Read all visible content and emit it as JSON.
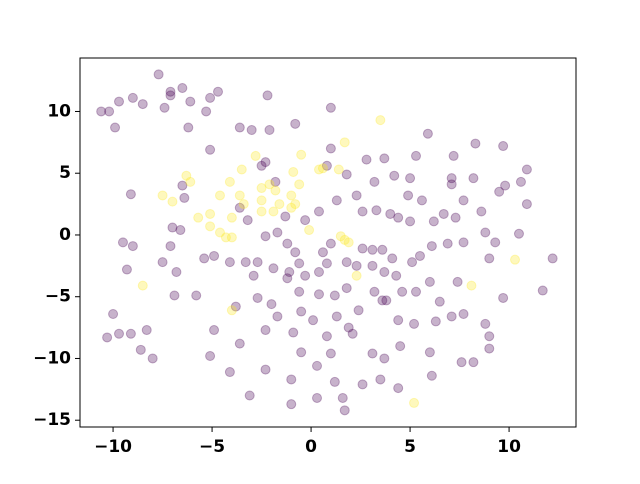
{
  "chart_data": {
    "type": "scatter",
    "xlim": [
      -11.67,
      13.38
    ],
    "ylim": [
      -15.55,
      14.33
    ],
    "xticks": [
      {
        "value": -10,
        "label": "−10"
      },
      {
        "value": -5,
        "label": "−5"
      },
      0,
      5,
      10
    ],
    "yticks": [
      {
        "value": -15,
        "label": "−15"
      },
      {
        "value": -10,
        "label": "−10"
      },
      {
        "value": -5,
        "label": "−5"
      },
      0,
      5,
      10
    ],
    "alpha": 0.3,
    "series": [
      {
        "color": "#440154",
        "x": [
          -7.7,
          -7.1,
          -7.1,
          -6.5,
          -10.6,
          -10.2,
          -9.7,
          -9.9,
          -9.0,
          -8.5,
          -7.4,
          -6.1,
          -5.1,
          -4.7,
          -5.3,
          -6.2,
          -3.6,
          -3.0,
          -2.2,
          -2.1,
          -0.8,
          1.0,
          -5.1,
          -2.3,
          -3.6,
          -9.1,
          -6.5,
          -6.4,
          5.9,
          8.3,
          7.2,
          9.7,
          3.7,
          5.3,
          4.2,
          5.0,
          7.1,
          8.2,
          9.8,
          10.6,
          10.9,
          1.8,
          2.8,
          3.2,
          4.9,
          5.6,
          7.1,
          9.5,
          10.9,
          1.0,
          0.8,
          -2.5,
          -1.8,
          -3.2,
          -1.3,
          -1.7,
          -0.3,
          0.4,
          1.3,
          2.3,
          2.6,
          3.3,
          4.0,
          4.4,
          5.0,
          6.2,
          6.7,
          7.3,
          7.7,
          8.6,
          8.8,
          10.5,
          9.3,
          7.7,
          6.9,
          6.1,
          5.5,
          5.1,
          4.1,
          3.6,
          3.1,
          2.6,
          1.0,
          0.6,
          -0.8,
          -1.2,
          -2.3,
          -2.7,
          -1.9,
          -1.1,
          -0.6,
          -0.3,
          0.4,
          0.8,
          1.8,
          2.3,
          3.1,
          3.7,
          4.3,
          4.6,
          5.3,
          6.0,
          6.5,
          7.4,
          9.0,
          9.7,
          11.7,
          12.2,
          -9.5,
          -9.0,
          -9.3,
          -7.5,
          -7.1,
          -7.0,
          -6.6,
          -6.8,
          -5.4,
          -4.9,
          -4.1,
          -3.3,
          -2.9,
          -1.2,
          -0.6,
          0.4,
          1.2,
          1.8,
          3.2,
          3.8,
          -5.8,
          -6.9,
          -4.9,
          -3.8,
          -2.7,
          -2.0,
          -1.7,
          -0.5,
          0.1,
          1.3,
          1.9,
          2.4,
          3.6,
          4.4,
          5.2,
          6.3,
          7.1,
          7.7,
          8.8,
          9.0,
          9.0,
          -10.0,
          -9.7,
          -9.1,
          -10.3,
          -8.3,
          -8.6,
          -8.0,
          -5.1,
          -3.6,
          -2.3,
          -0.9,
          -0.5,
          0.8,
          1.0,
          2.1,
          3.1,
          3.7,
          4.5,
          6.0,
          7.6,
          8.2,
          -4.1,
          -2.3,
          -1.0,
          0.3,
          1.2,
          1.6,
          1.7,
          2.6,
          3.5,
          4.4,
          6.1,
          -3.1,
          -1.0,
          0.3
        ],
        "y": [
          13.0,
          11.6,
          11.3,
          11.9,
          10.0,
          10.0,
          10.8,
          8.7,
          11.1,
          10.6,
          10.3,
          10.8,
          11.1,
          11.6,
          10.0,
          8.7,
          8.7,
          8.5,
          11.3,
          8.5,
          9.0,
          10.3,
          6.9,
          5.9,
          2.2,
          3.3,
          4.0,
          3.0,
          8.2,
          7.4,
          6.4,
          7.2,
          6.2,
          6.4,
          4.8,
          4.6,
          4.6,
          4.6,
          4.0,
          4.3,
          5.3,
          4.9,
          6.1,
          4.3,
          3.2,
          2.8,
          4.1,
          3.5,
          2.5,
          7.0,
          5.6,
          5.6,
          4.3,
          1.2,
          1.5,
          0.2,
          1.2,
          1.9,
          2.8,
          3.2,
          1.9,
          2.0,
          1.7,
          1.4,
          1.1,
          1.1,
          1.7,
          1.4,
          2.8,
          1.9,
          0.2,
          0.1,
          -0.6,
          -0.6,
          -0.7,
          -0.9,
          -1.7,
          -2.2,
          -1.9,
          -1.2,
          -1.2,
          -1.1,
          -0.7,
          -1.4,
          -1.4,
          -0.7,
          -0.1,
          -2.2,
          -2.7,
          -3.0,
          -2.3,
          -3.3,
          -3.0,
          -2.3,
          -2.2,
          -2.5,
          -2.5,
          -3.0,
          -3.3,
          -4.6,
          -4.6,
          -3.8,
          -5.4,
          -3.8,
          -1.9,
          -5.1,
          -4.5,
          -1.9,
          -0.6,
          -0.9,
          -2.8,
          -2.2,
          -0.9,
          0.6,
          0.4,
          -3.0,
          -1.9,
          -1.7,
          -2.2,
          -2.2,
          -3.3,
          -3.5,
          -4.6,
          -4.8,
          -4.9,
          -4.3,
          -4.6,
          -5.3,
          -4.9,
          -4.9,
          -7.7,
          -5.8,
          -5.1,
          -5.6,
          -6.6,
          -6.2,
          -6.9,
          -6.6,
          -7.5,
          -6.1,
          -5.3,
          -6.9,
          -7.2,
          -7.0,
          -6.6,
          -6.4,
          -7.2,
          -8.2,
          -9.2,
          -6.4,
          -8.0,
          -8.0,
          -8.3,
          -7.7,
          -9.3,
          -10.0,
          -9.8,
          -8.8,
          -7.7,
          -7.9,
          -9.5,
          -8.2,
          -9.6,
          -8.0,
          -9.6,
          -10.0,
          -9.0,
          -9.5,
          -10.3,
          -10.3,
          -11.1,
          -10.9,
          -11.7,
          -10.6,
          -11.9,
          -13.2,
          -14.2,
          -12.1,
          -11.7,
          -12.4,
          -11.4,
          -13.0,
          -13.7,
          -13.2
        ]
      },
      {
        "color": "#fde725",
        "x": [
          3.5,
          1.7,
          -0.5,
          -3.5,
          -6.3,
          -6.1,
          -4.1,
          -0.9,
          0.4,
          0.6,
          1.4,
          -2.1,
          -2.5,
          -1.8,
          -1.0,
          -7.5,
          -7.0,
          -4.6,
          -3.4,
          -2.5,
          -1.6,
          -0.8,
          -5.7,
          -5.1,
          -4.0,
          -2.5,
          -1.9,
          -1.0,
          -5.1,
          -4.6,
          -4.3,
          -4.0,
          -0.1,
          1.5,
          1.7,
          1.9,
          -8.5,
          -4.0,
          2.3,
          8.1,
          10.3,
          5.2,
          -2.8,
          -0.6,
          -3.6
        ],
        "y": [
          9.3,
          7.5,
          6.5,
          5.3,
          4.8,
          4.3,
          4.3,
          5.1,
          5.3,
          5.4,
          5.3,
          4.1,
          3.8,
          3.6,
          3.2,
          3.2,
          2.7,
          3.2,
          2.5,
          2.8,
          2.5,
          2.5,
          1.4,
          1.7,
          1.4,
          1.9,
          1.9,
          2.2,
          0.7,
          0.2,
          -0.2,
          -0.2,
          0.4,
          -0.1,
          -0.4,
          -0.6,
          -4.1,
          -6.1,
          -3.3,
          -4.1,
          -2.0,
          -13.6,
          6.4,
          4.1,
          3.2
        ]
      }
    ]
  }
}
